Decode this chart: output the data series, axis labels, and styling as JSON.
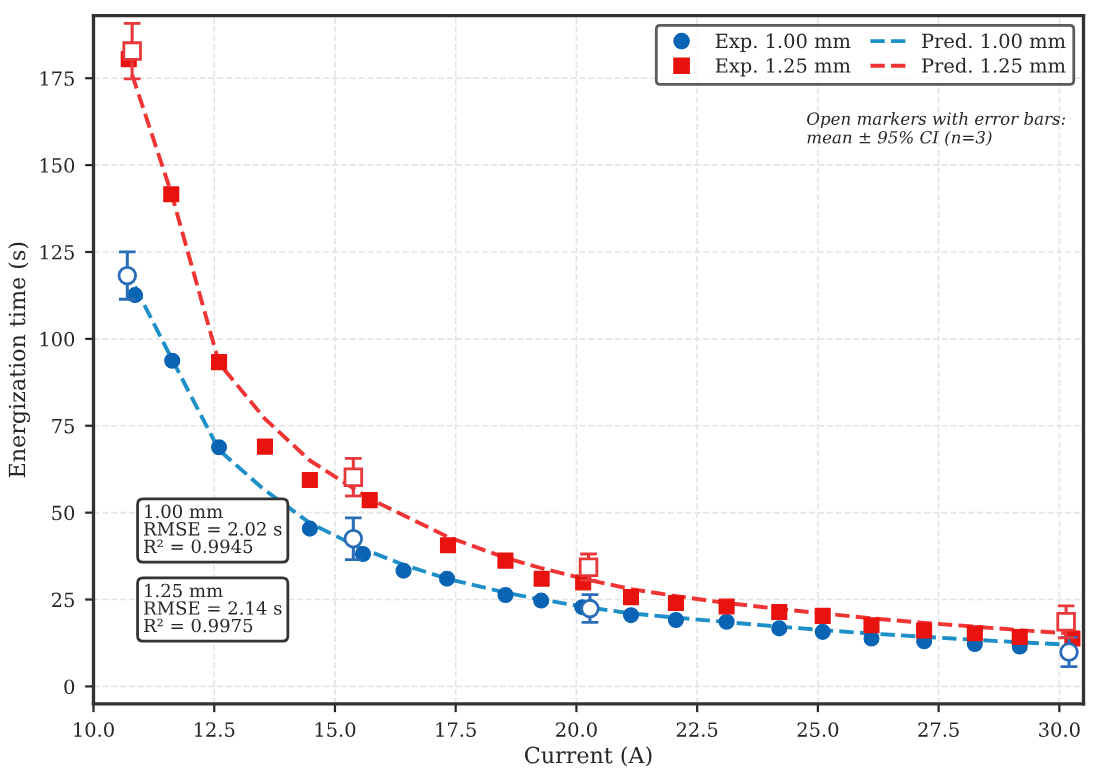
{
  "chart_data": {
    "type": "scatter",
    "xlabel": "Current (A)",
    "ylabel": "Energization time (s)",
    "xlim": [
      10.0,
      30.5
    ],
    "ylim": [
      -5,
      193
    ],
    "xticks": [
      {
        "value": 10,
        "label": "10.0"
      },
      12.5,
      {
        "value": 15,
        "label": "15.0"
      },
      17.5,
      {
        "value": 20,
        "label": "20.0"
      },
      22.5,
      {
        "value": 25,
        "label": "25.0"
      },
      27.5,
      {
        "value": 30,
        "label": "30.0"
      }
    ],
    "yticks": [
      0,
      25,
      50,
      75,
      100,
      125,
      150,
      175
    ],
    "grid": true,
    "legend": "top right",
    "annotations": [
      "Open markers with error bars:\nmean ± 95% CI (n=3)",
      "1.00 mm\nRMSE = 2.02 s\nR² = 0.9945",
      "1.25 mm\nRMSE = 2.14 s\nR² = 0.9975"
    ],
    "series": [
      {
        "name": "Exp. 1.00 mm",
        "marker": "circle",
        "color": "#0a64b4",
        "x": [
          10.86,
          11.63,
          12.6,
          14.48,
          15.58,
          16.42,
          17.32,
          18.53,
          19.27,
          20.12,
          21.13,
          22.06,
          23.11,
          24.2,
          25.1,
          26.11,
          27.2,
          28.25,
          29.18
        ],
        "values": [
          112.6,
          93.7,
          68.8,
          45.4,
          38.1,
          33.3,
          31,
          26.3,
          24.7,
          22.8,
          20.5,
          19.1,
          18.6,
          16.7,
          15.7,
          13.8,
          13,
          12.2,
          11.5
        ]
      },
      {
        "name": "Exp. 1.25 mm",
        "marker": "square",
        "color": "#e8120e",
        "x": [
          10.73,
          11.61,
          12.6,
          13.55,
          14.48,
          15.72,
          17.34,
          18.53,
          19.28,
          20.14,
          21.13,
          22.06,
          23.11,
          24.2,
          25.1,
          26.11,
          27.2,
          28.25,
          29.18,
          30.27
        ],
        "values": [
          180.5,
          141.6,
          93.3,
          69,
          59.4,
          53.6,
          40.6,
          36.2,
          31,
          29.9,
          25.7,
          24,
          23,
          21.4,
          20.3,
          17.6,
          16.1,
          15.3,
          14.2,
          13.8
        ]
      },
      {
        "name": "Pred. 1.00 mm",
        "type": "line",
        "line_style": "dashed",
        "color": "#1e90c8",
        "x": [
          10.86,
          11.63,
          12.6,
          13.5,
          14.48,
          15.5,
          16.42,
          17.32,
          18.53,
          19.27,
          20.12,
          21.13,
          22.06,
          23.11,
          24.2,
          25.1,
          26.11,
          27.2,
          28.25,
          29.18,
          30.2
        ],
        "values": [
          115,
          94,
          68,
          57,
          47,
          40,
          35,
          31,
          27,
          25,
          23,
          21,
          19.8,
          18.5,
          17.2,
          16.2,
          15.2,
          14.3,
          13.4,
          12.7,
          12
        ]
      },
      {
        "name": "Pred. 1.25 mm",
        "type": "line",
        "line_style": "dashed",
        "color": "#f03434",
        "x": [
          10.8,
          11.61,
          12.6,
          13.55,
          14.48,
          15.72,
          17.34,
          18.53,
          19.28,
          20.14,
          21.13,
          22.06,
          23.11,
          24.2,
          25.1,
          26.11,
          27.2,
          28.25,
          29.18,
          30.27
        ],
        "values": [
          176,
          142,
          93,
          77,
          65,
          54,
          43,
          37,
          34,
          31,
          28,
          26,
          24,
          22.3,
          21,
          19.6,
          18.3,
          17.2,
          16.2,
          15.2
        ]
      },
      {
        "marker": "circle",
        "color": "#2a6cb8",
        "x": [
          10.7,
          15.38,
          20.28,
          30.2
        ],
        "values": [
          118.2,
          42.5,
          22.4,
          9.9
        ],
        "errors": [
          6.8,
          6,
          4,
          4.2
        ]
      },
      {
        "marker": "square",
        "color": "#e8383a",
        "x": [
          10.8,
          15.38,
          20.25,
          30.14
        ],
        "values": [
          182.8,
          60.2,
          34.3,
          18.6
        ],
        "errors": [
          8,
          5.4,
          3.8,
          4.6
        ]
      }
    ]
  }
}
